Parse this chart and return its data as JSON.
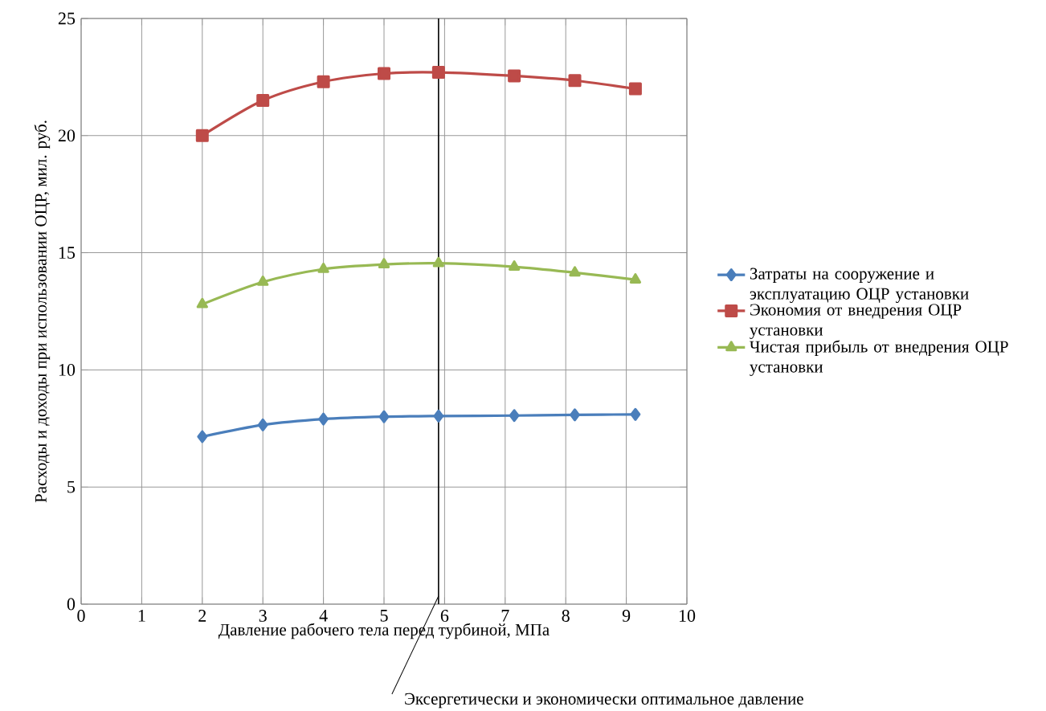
{
  "chart_data": {
    "type": "line",
    "xlabel": "Давление рабочего тела  перед турбиной, МПа",
    "ylabel": "Расходы и доходы при использовании ОЦР, мил. руб.",
    "x": [
      2,
      3,
      4,
      5,
      5.9,
      7.15,
      8.15,
      9.15
    ],
    "series": [
      {
        "name": "Затраты на сооружение и эксплуатацию ОЦР  установки",
        "color": "#4a7ebb",
        "marker": "diamond",
        "values": [
          7.15,
          7.65,
          7.9,
          8.0,
          8.03,
          8.05,
          8.08,
          8.1
        ]
      },
      {
        "name": "Экономия от внедрения ОЦР установки",
        "color": "#be4b48",
        "marker": "square",
        "values": [
          20.0,
          21.5,
          22.3,
          22.65,
          22.7,
          22.55,
          22.35,
          22.0
        ]
      },
      {
        "name": "Чистая прибыль от внедрения ОЦР установки",
        "color": "#98b954",
        "marker": "triangle",
        "values": [
          12.8,
          13.75,
          14.3,
          14.5,
          14.55,
          14.4,
          14.15,
          13.85
        ]
      }
    ],
    "xlim": [
      0,
      10
    ],
    "ylim": [
      0,
      25
    ],
    "xticks": [
      0,
      1,
      2,
      3,
      4,
      5,
      6,
      7,
      8,
      9,
      10
    ],
    "yticks": [
      0,
      5,
      10,
      15,
      20,
      25
    ],
    "grid": true,
    "legend": "right",
    "line_style": "solid",
    "ref_lines": [
      {
        "axis": "x",
        "value": 5.9,
        "label": "Эксергетически и экономически оптимальное давление",
        "color": "#000000"
      }
    ]
  }
}
